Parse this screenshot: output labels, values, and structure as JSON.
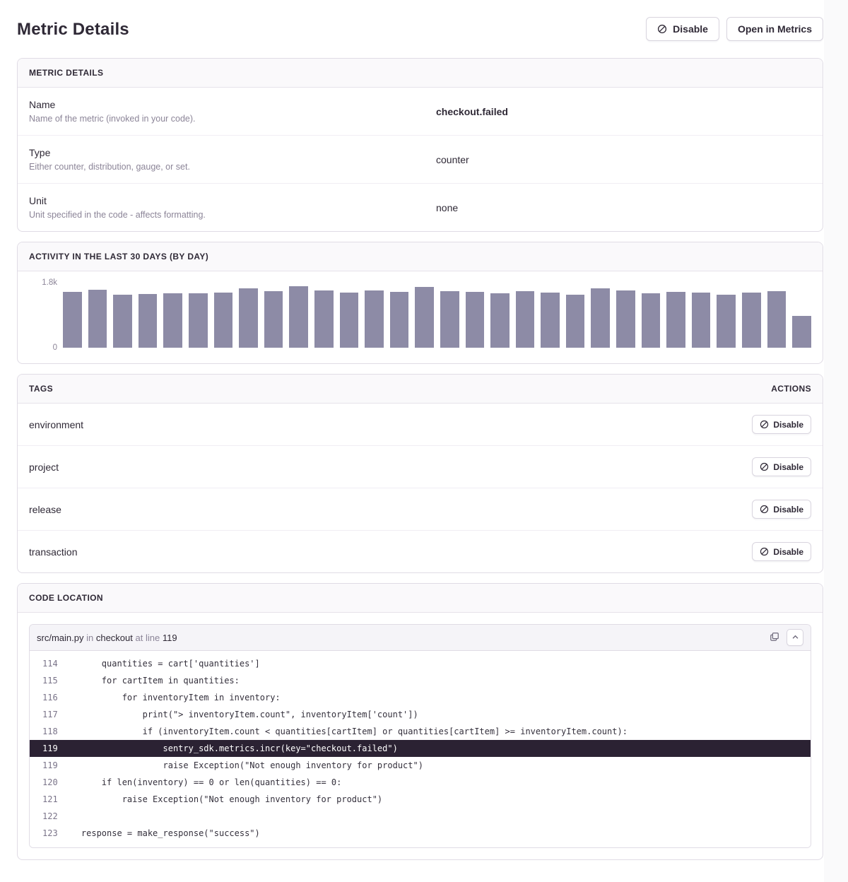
{
  "page": {
    "title": "Metric Details"
  },
  "header": {
    "disable_button": "Disable",
    "open_in_metrics_button": "Open in Metrics"
  },
  "metric_details": {
    "panel_title": "Metric Details",
    "rows": [
      {
        "label": "Name",
        "description": "Name of the metric (invoked in your code).",
        "value": "checkout.failed",
        "bold": true
      },
      {
        "label": "Type",
        "description": "Either counter, distribution, gauge, or set.",
        "value": "counter",
        "bold": false
      },
      {
        "label": "Unit",
        "description": "Unit specified in the code - affects formatting.",
        "value": "none",
        "bold": false
      }
    ]
  },
  "activity": {
    "panel_title": "Activity in the last 30 days (by day)",
    "y_max_label": "1.8k",
    "y_min_label": "0"
  },
  "chart_data": {
    "type": "bar",
    "title": "Activity in the last 30 days (by day)",
    "ylim": [
      0,
      1800
    ],
    "bar_color": "#8d8ba6",
    "grid": false,
    "legend": false,
    "values": [
      1520,
      1570,
      1430,
      1460,
      1470,
      1480,
      1500,
      1610,
      1530,
      1660,
      1560,
      1500,
      1545,
      1515,
      1640,
      1530,
      1520,
      1480,
      1535,
      1490,
      1445,
      1600,
      1550,
      1470,
      1505,
      1490,
      1440,
      1485,
      1540,
      860
    ]
  },
  "tags": {
    "panel_title": "Tags",
    "actions_title": "Actions",
    "disable_label": "Disable",
    "items": [
      "environment",
      "project",
      "release",
      "transaction"
    ]
  },
  "code_location": {
    "panel_title": "Code Location",
    "file": "src/main.py",
    "in_word": "in",
    "function": "checkout",
    "at_line_word": "at line",
    "line_number": "119",
    "lines": [
      {
        "no": "114",
        "code": "        quantities = cart['quantities']",
        "highlight": false
      },
      {
        "no": "115",
        "code": "        for cartItem in quantities:",
        "highlight": false
      },
      {
        "no": "116",
        "code": "            for inventoryItem in inventory:",
        "highlight": false
      },
      {
        "no": "117",
        "code": "                print(\"> inventoryItem.count\", inventoryItem['count'])",
        "highlight": false
      },
      {
        "no": "118",
        "code": "                if (inventoryItem.count < quantities[cartItem] or quantities[cartItem] >= inventoryItem.count):",
        "highlight": false
      },
      {
        "no": "119",
        "code": "                    sentry_sdk.metrics.incr(key=\"checkout.failed\")",
        "highlight": true
      },
      {
        "no": "119",
        "code": "                    raise Exception(\"Not enough inventory for product\")",
        "highlight": false
      },
      {
        "no": "120",
        "code": "        if len(inventory) == 0 or len(quantities) == 0:",
        "highlight": false
      },
      {
        "no": "121",
        "code": "            raise Exception(\"Not enough inventory for product\")",
        "highlight": false
      },
      {
        "no": "122",
        "code": "",
        "highlight": false
      },
      {
        "no": "123",
        "code": "    response = make_response(\"success\")",
        "highlight": false
      }
    ]
  },
  "icons": {
    "disable": "circle-slash-icon",
    "copy": "copy-icon",
    "collapse": "chevron-up-icon"
  },
  "colors": {
    "text_dark": "#2f2936",
    "text_gray": "#8c8598",
    "panel_border": "#e0dce5",
    "panel_header_bg": "#faf9fb",
    "bar": "#8d8ba6",
    "highlight_line_bg": "#2b2233"
  }
}
